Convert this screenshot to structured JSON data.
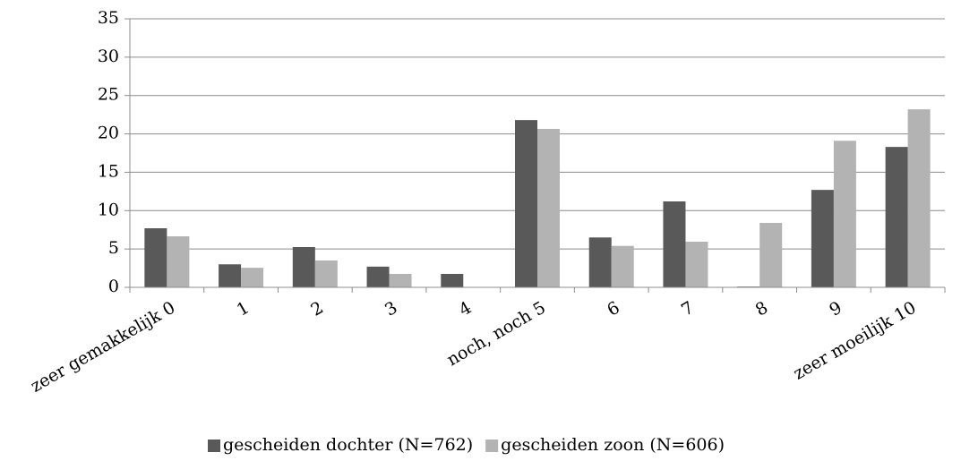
{
  "chart_data": {
    "type": "bar",
    "categories": [
      "zeer gemakkelijk 0",
      "1",
      "2",
      "3",
      "4",
      "noch, noch 5",
      "6",
      "7",
      "8",
      "9",
      "zeer moeilijk 10"
    ],
    "series": [
      {
        "name": "gescheiden dochter (N=762)",
        "color": "#595959",
        "values": [
          7.7,
          3.0,
          5.25,
          2.7,
          1.75,
          21.8,
          6.5,
          11.2,
          0.1,
          12.7,
          18.3
        ]
      },
      {
        "name": "gescheiden zoon (N=606)",
        "color": "#b3b3b3",
        "values": [
          6.65,
          2.55,
          3.5,
          1.75,
          0,
          20.65,
          5.4,
          5.95,
          8.4,
          19.1,
          23.2
        ]
      }
    ],
    "ylim": [
      0,
      35
    ],
    "yticks": [
      0,
      5,
      10,
      15,
      20,
      25,
      30,
      35
    ],
    "grid": true,
    "legend": "bottom"
  }
}
